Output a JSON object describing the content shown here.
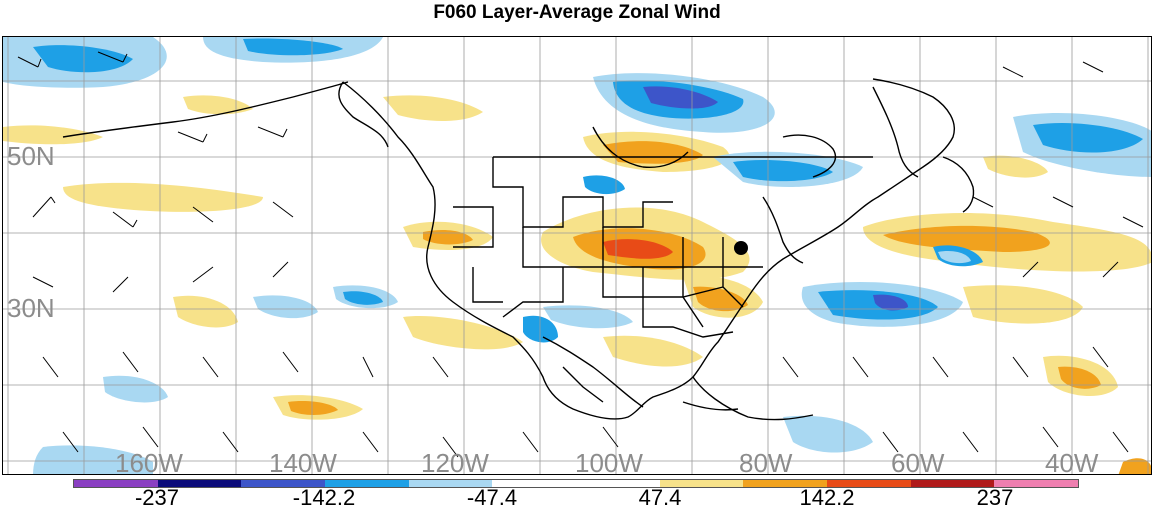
{
  "title": "F060 Layer-Average Zonal Wind",
  "map": {
    "lat_labels": [
      "50N",
      "30N"
    ],
    "lon_labels": [
      "160W",
      "140W",
      "120W",
      "100W",
      "80W",
      "60W",
      "40W"
    ]
  },
  "colorbar": {
    "colors": [
      "#8a3fc2",
      "#0b0b7a",
      "#3d55c9",
      "#1ea0e6",
      "#a9d8f2",
      "#ffffff",
      "#ffffff",
      "#f7e28a",
      "#f1a21e",
      "#e84b17",
      "#b01a1a",
      "#ef7fb0"
    ],
    "labels": [
      "-237",
      "-142.2",
      "-47.4",
      "47.4",
      "142.2",
      "237"
    ]
  }
}
